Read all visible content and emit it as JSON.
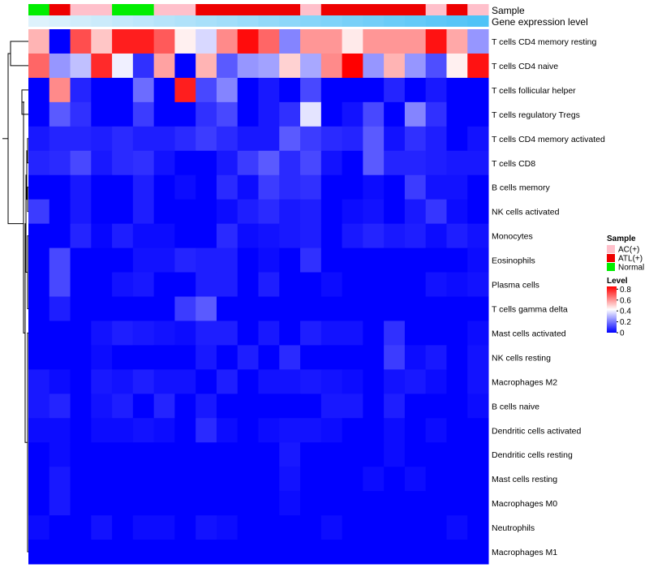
{
  "chart_data": {
    "type": "heatmap",
    "title": "",
    "annotation_tracks": [
      {
        "name": "Sample",
        "label": "Sample"
      },
      {
        "name": "Gene expression level",
        "label": "Gene expression level"
      }
    ],
    "samples": [
      "Normal",
      "ATL(+)",
      "AC(+)",
      "AC(+)",
      "Normal",
      "Normal",
      "AC(+)",
      "AC(+)",
      "ATL(+)",
      "ATL(+)",
      "ATL(+)",
      "ATL(+)",
      "ATL(+)",
      "AC(+)",
      "ATL(+)",
      "ATL(+)",
      "ATL(+)",
      "ATL(+)",
      "ATL(+)",
      "AC(+)",
      "ATL(+)",
      "AC(+)"
    ],
    "gene_expression_level": [
      0.05,
      0.09,
      0.14,
      0.18,
      0.23,
      0.27,
      0.32,
      0.36,
      0.41,
      0.45,
      0.5,
      0.55,
      0.59,
      0.64,
      0.68,
      0.73,
      0.77,
      0.82,
      0.86,
      0.91,
      0.95,
      1.0
    ],
    "legend": {
      "sample": {
        "title": "Sample",
        "entries": [
          {
            "label": "AC(+)",
            "color": "#FFC0CB"
          },
          {
            "label": "ATL(+)",
            "color": "#EE0000"
          },
          {
            "label": "Normal",
            "color": "#00EE00"
          }
        ]
      },
      "level": {
        "title": "Level",
        "ticks": [
          "0.8",
          "0.6",
          "0.4",
          "0.2",
          "0"
        ],
        "tick_values": [
          0.8,
          0.6,
          0.4,
          0.2,
          0
        ],
        "range": [
          0,
          0.85
        ],
        "low_color": "#0000FF",
        "mid_color": "#FFFFFF",
        "high_color": "#FF0000"
      }
    },
    "rows": [
      "T cells CD4 memory resting",
      "T cells CD4 naive",
      "T cells follicular helper",
      "T cells regulatory  Tregs",
      "T cells CD4 memory activated",
      "T cells CD8",
      "B cells memory",
      "NK cells activated",
      "Monocytes",
      "Eosinophils",
      "Plasma cells",
      "T cells gamma delta",
      "Mast cells activated",
      "NK cells resting",
      "Macrophages M2",
      "B cells naive",
      "Dendritic cells activated",
      "Dendritic cells resting",
      "Mast cells resting",
      "Macrophages M0",
      "Neutrophils",
      "Macrophages M1"
    ],
    "values": [
      [
        0.55,
        0.0,
        0.72,
        0.52,
        0.8,
        0.8,
        0.7,
        0.45,
        0.36,
        0.62,
        0.83,
        0.68,
        0.22,
        0.6,
        0.6,
        0.46,
        0.6,
        0.6,
        0.6,
        0.82,
        0.57,
        0.25
      ],
      [
        0.68,
        0.25,
        0.32,
        0.78,
        0.4,
        0.08,
        0.58,
        0.0,
        0.55,
        0.15,
        0.25,
        0.27,
        0.5,
        0.28,
        0.62,
        0.85,
        0.25,
        0.55,
        0.25,
        0.13,
        0.45,
        0.82
      ],
      [
        0.0,
        0.62,
        0.06,
        0.0,
        0.0,
        0.18,
        0.0,
        0.8,
        0.12,
        0.22,
        0.0,
        0.04,
        0.0,
        0.12,
        0.0,
        0.0,
        0.0,
        0.06,
        0.0,
        0.04,
        0.0,
        0.0
      ],
      [
        0.0,
        0.15,
        0.08,
        0.0,
        0.0,
        0.1,
        0.0,
        0.0,
        0.08,
        0.12,
        0.0,
        0.04,
        0.08,
        0.38,
        0.0,
        0.03,
        0.12,
        0.0,
        0.22,
        0.08,
        0.0,
        0.0
      ],
      [
        0.04,
        0.06,
        0.06,
        0.05,
        0.07,
        0.05,
        0.05,
        0.07,
        0.1,
        0.07,
        0.04,
        0.04,
        0.15,
        0.1,
        0.07,
        0.06,
        0.15,
        0.03,
        0.08,
        0.05,
        0.0,
        0.03
      ],
      [
        0.06,
        0.07,
        0.12,
        0.04,
        0.07,
        0.08,
        0.03,
        0.0,
        0.0,
        0.04,
        0.1,
        0.15,
        0.07,
        0.12,
        0.03,
        0.0,
        0.15,
        0.06,
        0.06,
        0.05,
        0.04,
        0.04
      ],
      [
        0.0,
        0.0,
        0.04,
        0.0,
        0.0,
        0.05,
        0.0,
        0.02,
        0.0,
        0.07,
        0.02,
        0.1,
        0.07,
        0.08,
        0.0,
        0.0,
        0.02,
        0.0,
        0.1,
        0.03,
        0.03,
        0.0
      ],
      [
        0.1,
        0.0,
        0.04,
        0.0,
        0.0,
        0.05,
        0.0,
        0.0,
        0.0,
        0.02,
        0.05,
        0.07,
        0.04,
        0.05,
        0.0,
        0.02,
        0.03,
        0.0,
        0.04,
        0.09,
        0.02,
        0.0
      ],
      [
        0.0,
        0.0,
        0.06,
        0.01,
        0.05,
        0.02,
        0.02,
        0.0,
        0.0,
        0.07,
        0.02,
        0.03,
        0.04,
        0.05,
        0.0,
        0.04,
        0.06,
        0.04,
        0.05,
        0.02,
        0.05,
        0.03
      ],
      [
        0.0,
        0.12,
        0.0,
        0.0,
        0.0,
        0.03,
        0.03,
        0.06,
        0.05,
        0.05,
        0.0,
        0.02,
        0.0,
        0.08,
        0.0,
        0.0,
        0.0,
        0.0,
        0.0,
        0.0,
        0.0,
        0.02
      ],
      [
        0.0,
        0.12,
        0.0,
        0.0,
        0.03,
        0.04,
        0.0,
        0.0,
        0.05,
        0.05,
        0.0,
        0.05,
        0.0,
        0.0,
        0.02,
        0.0,
        0.0,
        0.0,
        0.0,
        0.03,
        0.02,
        0.03
      ],
      [
        0.0,
        0.05,
        0.0,
        0.0,
        0.0,
        0.0,
        0.0,
        0.1,
        0.15,
        0.0,
        0.0,
        0.0,
        0.0,
        0.0,
        0.0,
        0.0,
        0.0,
        0.0,
        0.0,
        0.0,
        0.0,
        0.0
      ],
      [
        0.0,
        0.0,
        0.0,
        0.03,
        0.05,
        0.04,
        0.03,
        0.02,
        0.05,
        0.05,
        0.0,
        0.04,
        0.0,
        0.05,
        0.03,
        0.03,
        0.0,
        0.08,
        0.0,
        0.0,
        0.0,
        0.02
      ],
      [
        0.0,
        0.0,
        0.0,
        0.02,
        0.0,
        0.0,
        0.0,
        0.0,
        0.04,
        0.0,
        0.05,
        0.0,
        0.07,
        0.0,
        0.0,
        0.0,
        0.0,
        0.1,
        0.02,
        0.04,
        0.0,
        0.03
      ],
      [
        0.04,
        0.02,
        0.0,
        0.04,
        0.03,
        0.05,
        0.03,
        0.03,
        0.0,
        0.05,
        0.0,
        0.03,
        0.03,
        0.04,
        0.03,
        0.02,
        0.0,
        0.03,
        0.04,
        0.02,
        0.0,
        0.03
      ],
      [
        0.04,
        0.06,
        0.0,
        0.03,
        0.05,
        0.0,
        0.06,
        0.0,
        0.04,
        0.0,
        0.0,
        0.0,
        0.0,
        0.0,
        0.04,
        0.04,
        0.0,
        0.05,
        0.0,
        0.0,
        0.0,
        0.02
      ],
      [
        0.02,
        0.02,
        0.0,
        0.02,
        0.02,
        0.03,
        0.02,
        0.0,
        0.07,
        0.02,
        0.0,
        0.02,
        0.03,
        0.03,
        0.02,
        0.0,
        0.0,
        0.02,
        0.0,
        0.02,
        0.0,
        0.0
      ],
      [
        0.0,
        0.02,
        0.0,
        0.0,
        0.0,
        0.0,
        0.0,
        0.0,
        0.0,
        0.0,
        0.0,
        0.0,
        0.04,
        0.0,
        0.0,
        0.0,
        0.0,
        0.02,
        0.0,
        0.0,
        0.0,
        0.0
      ],
      [
        0.0,
        0.04,
        0.0,
        0.0,
        0.0,
        0.0,
        0.0,
        0.0,
        0.0,
        0.0,
        0.0,
        0.0,
        0.03,
        0.0,
        0.0,
        0.0,
        0.02,
        0.0,
        0.02,
        0.0,
        0.0,
        0.0
      ],
      [
        0.0,
        0.04,
        0.0,
        0.0,
        0.0,
        0.0,
        0.0,
        0.0,
        0.0,
        0.0,
        0.0,
        0.0,
        0.02,
        0.0,
        0.0,
        0.0,
        0.0,
        0.0,
        0.0,
        0.0,
        0.0,
        0.0
      ],
      [
        0.02,
        0.0,
        0.0,
        0.03,
        0.0,
        0.02,
        0.02,
        0.0,
        0.03,
        0.02,
        0.0,
        0.0,
        0.0,
        0.0,
        0.02,
        0.0,
        0.0,
        0.0,
        0.0,
        0.0,
        0.02,
        0.0
      ],
      [
        0.0,
        0.0,
        0.0,
        0.0,
        0.0,
        0.0,
        0.0,
        0.0,
        0.0,
        0.0,
        0.0,
        0.0,
        0.0,
        0.0,
        0.0,
        0.0,
        0.0,
        0.0,
        0.0,
        0.0,
        0.0,
        0.0
      ]
    ]
  }
}
